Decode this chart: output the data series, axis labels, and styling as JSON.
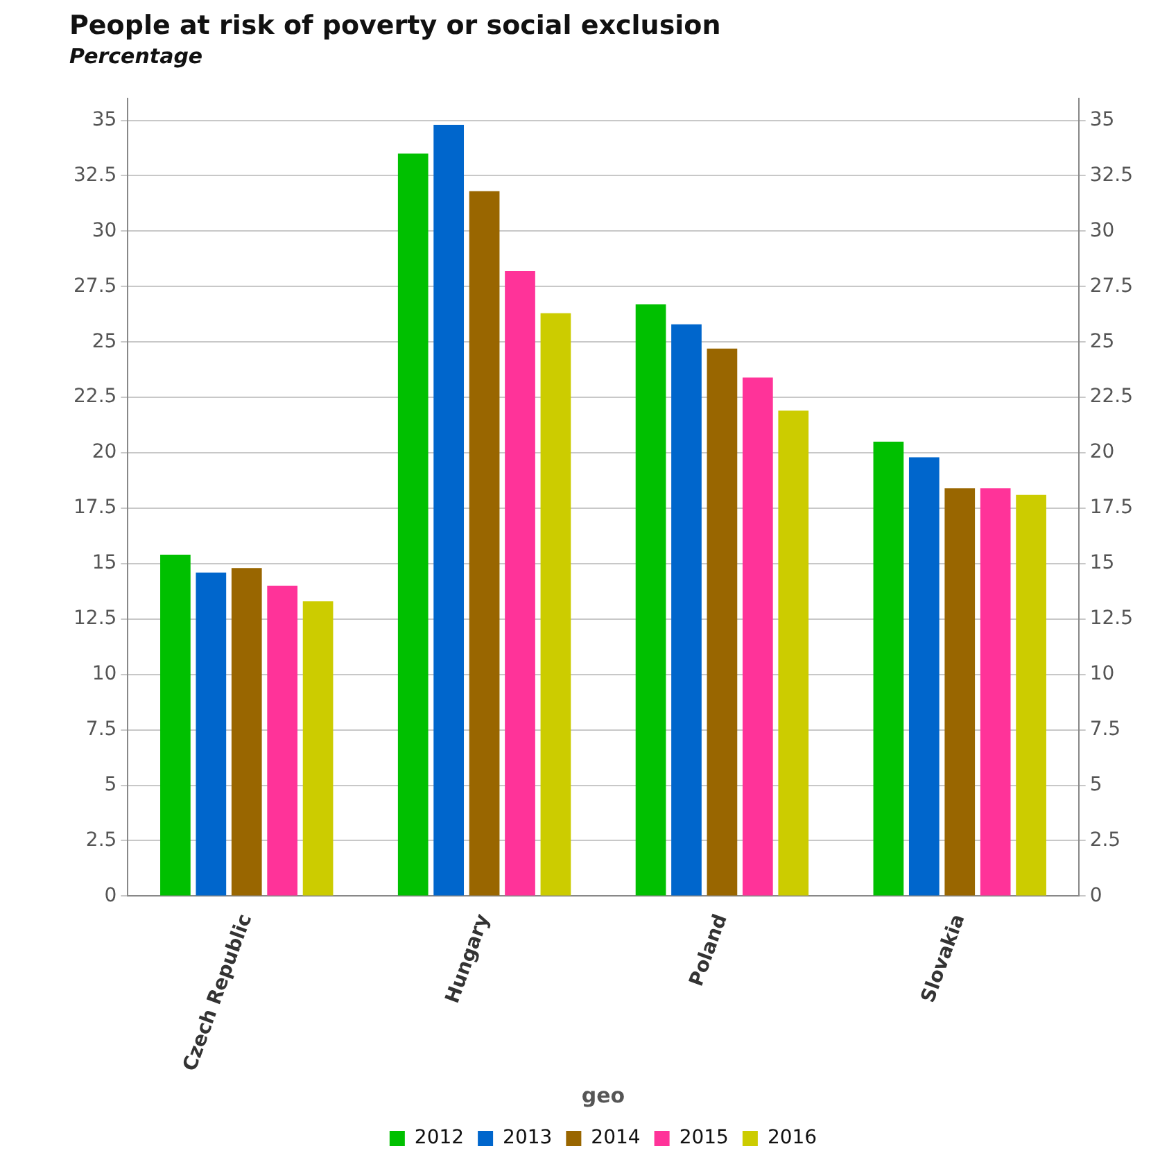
{
  "chart_data": {
    "type": "bar",
    "title": "People at risk of poverty or social exclusion",
    "subtitle": "Percentage",
    "xlabel": "geo",
    "categories": [
      "Czech Republic",
      "Hungary",
      "Poland",
      "Slovakia"
    ],
    "series": [
      {
        "name": "2012",
        "color": "#00c000",
        "values": [
          15.4,
          33.5,
          26.7,
          20.5
        ]
      },
      {
        "name": "2013",
        "color": "#0066cc",
        "values": [
          14.6,
          34.8,
          25.8,
          19.8
        ]
      },
      {
        "name": "2014",
        "color": "#996600",
        "values": [
          14.8,
          31.8,
          24.7,
          18.4
        ]
      },
      {
        "name": "2015",
        "color": "#ff3399",
        "values": [
          14.0,
          28.2,
          23.4,
          18.4
        ]
      },
      {
        "name": "2016",
        "color": "#cccc00",
        "values": [
          13.3,
          26.3,
          21.9,
          18.1
        ]
      }
    ],
    "ylim": [
      0,
      36
    ],
    "yticks": [
      0,
      2.5,
      5,
      7.5,
      10,
      12.5,
      15,
      17.5,
      20,
      22.5,
      25,
      27.5,
      30,
      32.5,
      35
    ],
    "y2lim": [
      0,
      36
    ],
    "y2ticks": [
      0,
      2.5,
      5,
      7.5,
      10,
      12.5,
      15,
      17.5,
      20,
      22.5,
      25,
      27.5,
      30,
      32.5,
      35
    ],
    "grid": "y",
    "legend": "bottom"
  }
}
